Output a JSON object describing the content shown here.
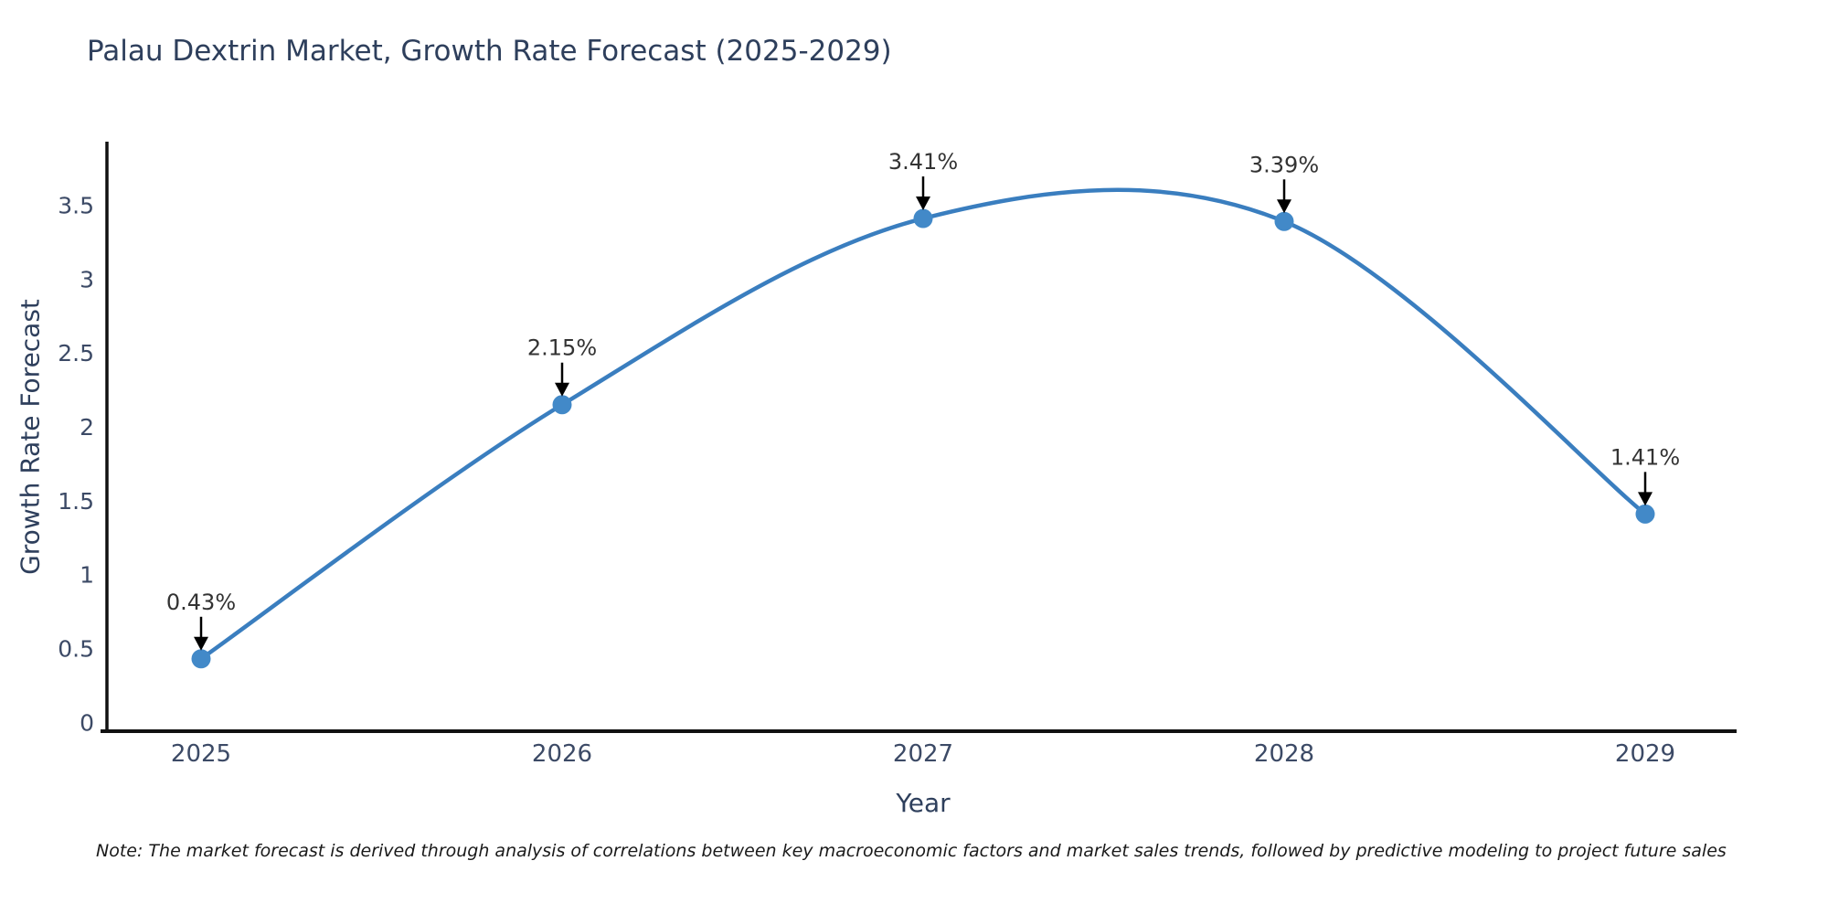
{
  "title": "Palau Dextrin Market, Growth Rate Forecast (2025-2029)",
  "note": "Note: The market forecast is derived through analysis of correlations between key macroeconomic factors and market sales trends, followed by predictive modeling to project future sales",
  "chart_data": {
    "type": "line",
    "line_shape": "spline",
    "title": "Palau Dextrin Market, Growth Rate Forecast (2025-2029)",
    "xlabel": "Year",
    "ylabel": "Growth Rate Forecast",
    "categories": [
      "2025",
      "2026",
      "2027",
      "2028",
      "2029"
    ],
    "series": [
      {
        "name": "Growth Rate Forecast",
        "values": [
          0.43,
          2.15,
          3.41,
          3.39,
          1.41
        ]
      }
    ],
    "data_labels": [
      "0.43%",
      "2.15%",
      "3.41%",
      "3.39%",
      "1.41%"
    ],
    "yticks": [
      "0",
      "0.5",
      "1",
      "1.5",
      "2",
      "2.5",
      "3",
      "3.5"
    ],
    "ylim": [
      -0.06,
      3.93
    ],
    "grid": false,
    "legend": "none",
    "markers": true,
    "annotation_arrows": true,
    "colors": {
      "line": "#3a7ebf",
      "marker": "#4289c8",
      "axis": "#111111",
      "tick_text": "#3c4a66",
      "annotation_text": "#333333",
      "arrow": "#000000",
      "title_text": "#2e3f5c"
    }
  }
}
